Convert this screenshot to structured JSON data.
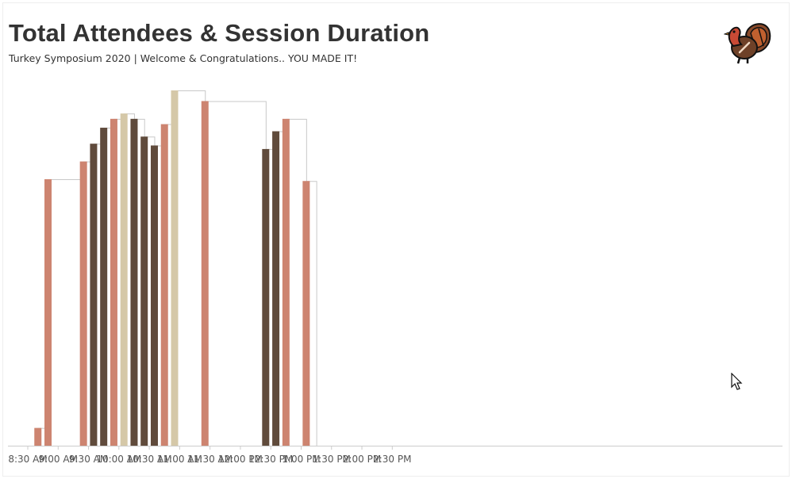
{
  "header": {
    "title": "Total Attendees & Session Duration",
    "subtitle": "Turkey Symposium 2020 | Welcome & Congratulations.. YOU MADE IT!"
  },
  "icons": {
    "logo": "turkey-icon",
    "pointer": "cursor-icon"
  },
  "colors": {
    "salmon": "#cd8470",
    "brown": "#604b3c",
    "tan": "#d5c8a8",
    "connector": "#c8c8c8",
    "axis": "#cccccc"
  },
  "chart_data": {
    "type": "bar",
    "xlabel": "",
    "ylabel": "",
    "x_ticks": [
      "8:30 AM",
      "9:00 AM",
      "9:30 AM",
      "10:00 AM",
      "10:30 AM",
      "11:00 AM",
      "11:30 AM",
      "12:00 PM",
      "12:30 PM",
      "1:00 PM",
      "1:30 PM",
      "2:00 PM",
      "2:30 PM"
    ],
    "ylim": [
      0,
      100
    ],
    "grid": false,
    "bars": [
      {
        "start": "8:40 AM",
        "end": "8:50 AM",
        "value": 5,
        "color": "salmon"
      },
      {
        "start": "8:50 AM",
        "end": "9:25 AM",
        "value": 75,
        "color": "salmon"
      },
      {
        "start": "9:25 AM",
        "end": "9:35 AM",
        "value": 80,
        "color": "salmon"
      },
      {
        "start": "9:35 AM",
        "end": "9:45 AM",
        "value": 85,
        "color": "brown"
      },
      {
        "start": "9:45 AM",
        "end": "9:55 AM",
        "value": 89.5,
        "color": "brown"
      },
      {
        "start": "9:55 AM",
        "end": "10:05 AM",
        "value": 92,
        "color": "salmon"
      },
      {
        "start": "10:05 AM",
        "end": "10:15 AM",
        "value": 93.5,
        "color": "tan"
      },
      {
        "start": "10:15 AM",
        "end": "10:25 AM",
        "value": 92,
        "color": "brown"
      },
      {
        "start": "10:25 AM",
        "end": "10:35 AM",
        "value": 87,
        "color": "brown"
      },
      {
        "start": "10:35 AM",
        "end": "10:45 AM",
        "value": 84.5,
        "color": "brown"
      },
      {
        "start": "10:45 AM",
        "end": "10:55 AM",
        "value": 90.5,
        "color": "salmon"
      },
      {
        "start": "10:55 AM",
        "end": "11:25 AM",
        "value": 100,
        "color": "tan"
      },
      {
        "start": "11:25 AM",
        "end": "12:25 PM",
        "value": 97,
        "color": "salmon"
      },
      {
        "start": "12:25 PM",
        "end": "12:35 PM",
        "value": 83.5,
        "color": "brown"
      },
      {
        "start": "12:35 PM",
        "end": "12:45 PM",
        "value": 88.5,
        "color": "brown"
      },
      {
        "start": "12:45 PM",
        "end": "1:05 PM",
        "value": 92,
        "color": "salmon"
      },
      {
        "start": "1:05 PM",
        "end": "1:15 PM",
        "value": 74.5,
        "color": "salmon"
      }
    ]
  }
}
